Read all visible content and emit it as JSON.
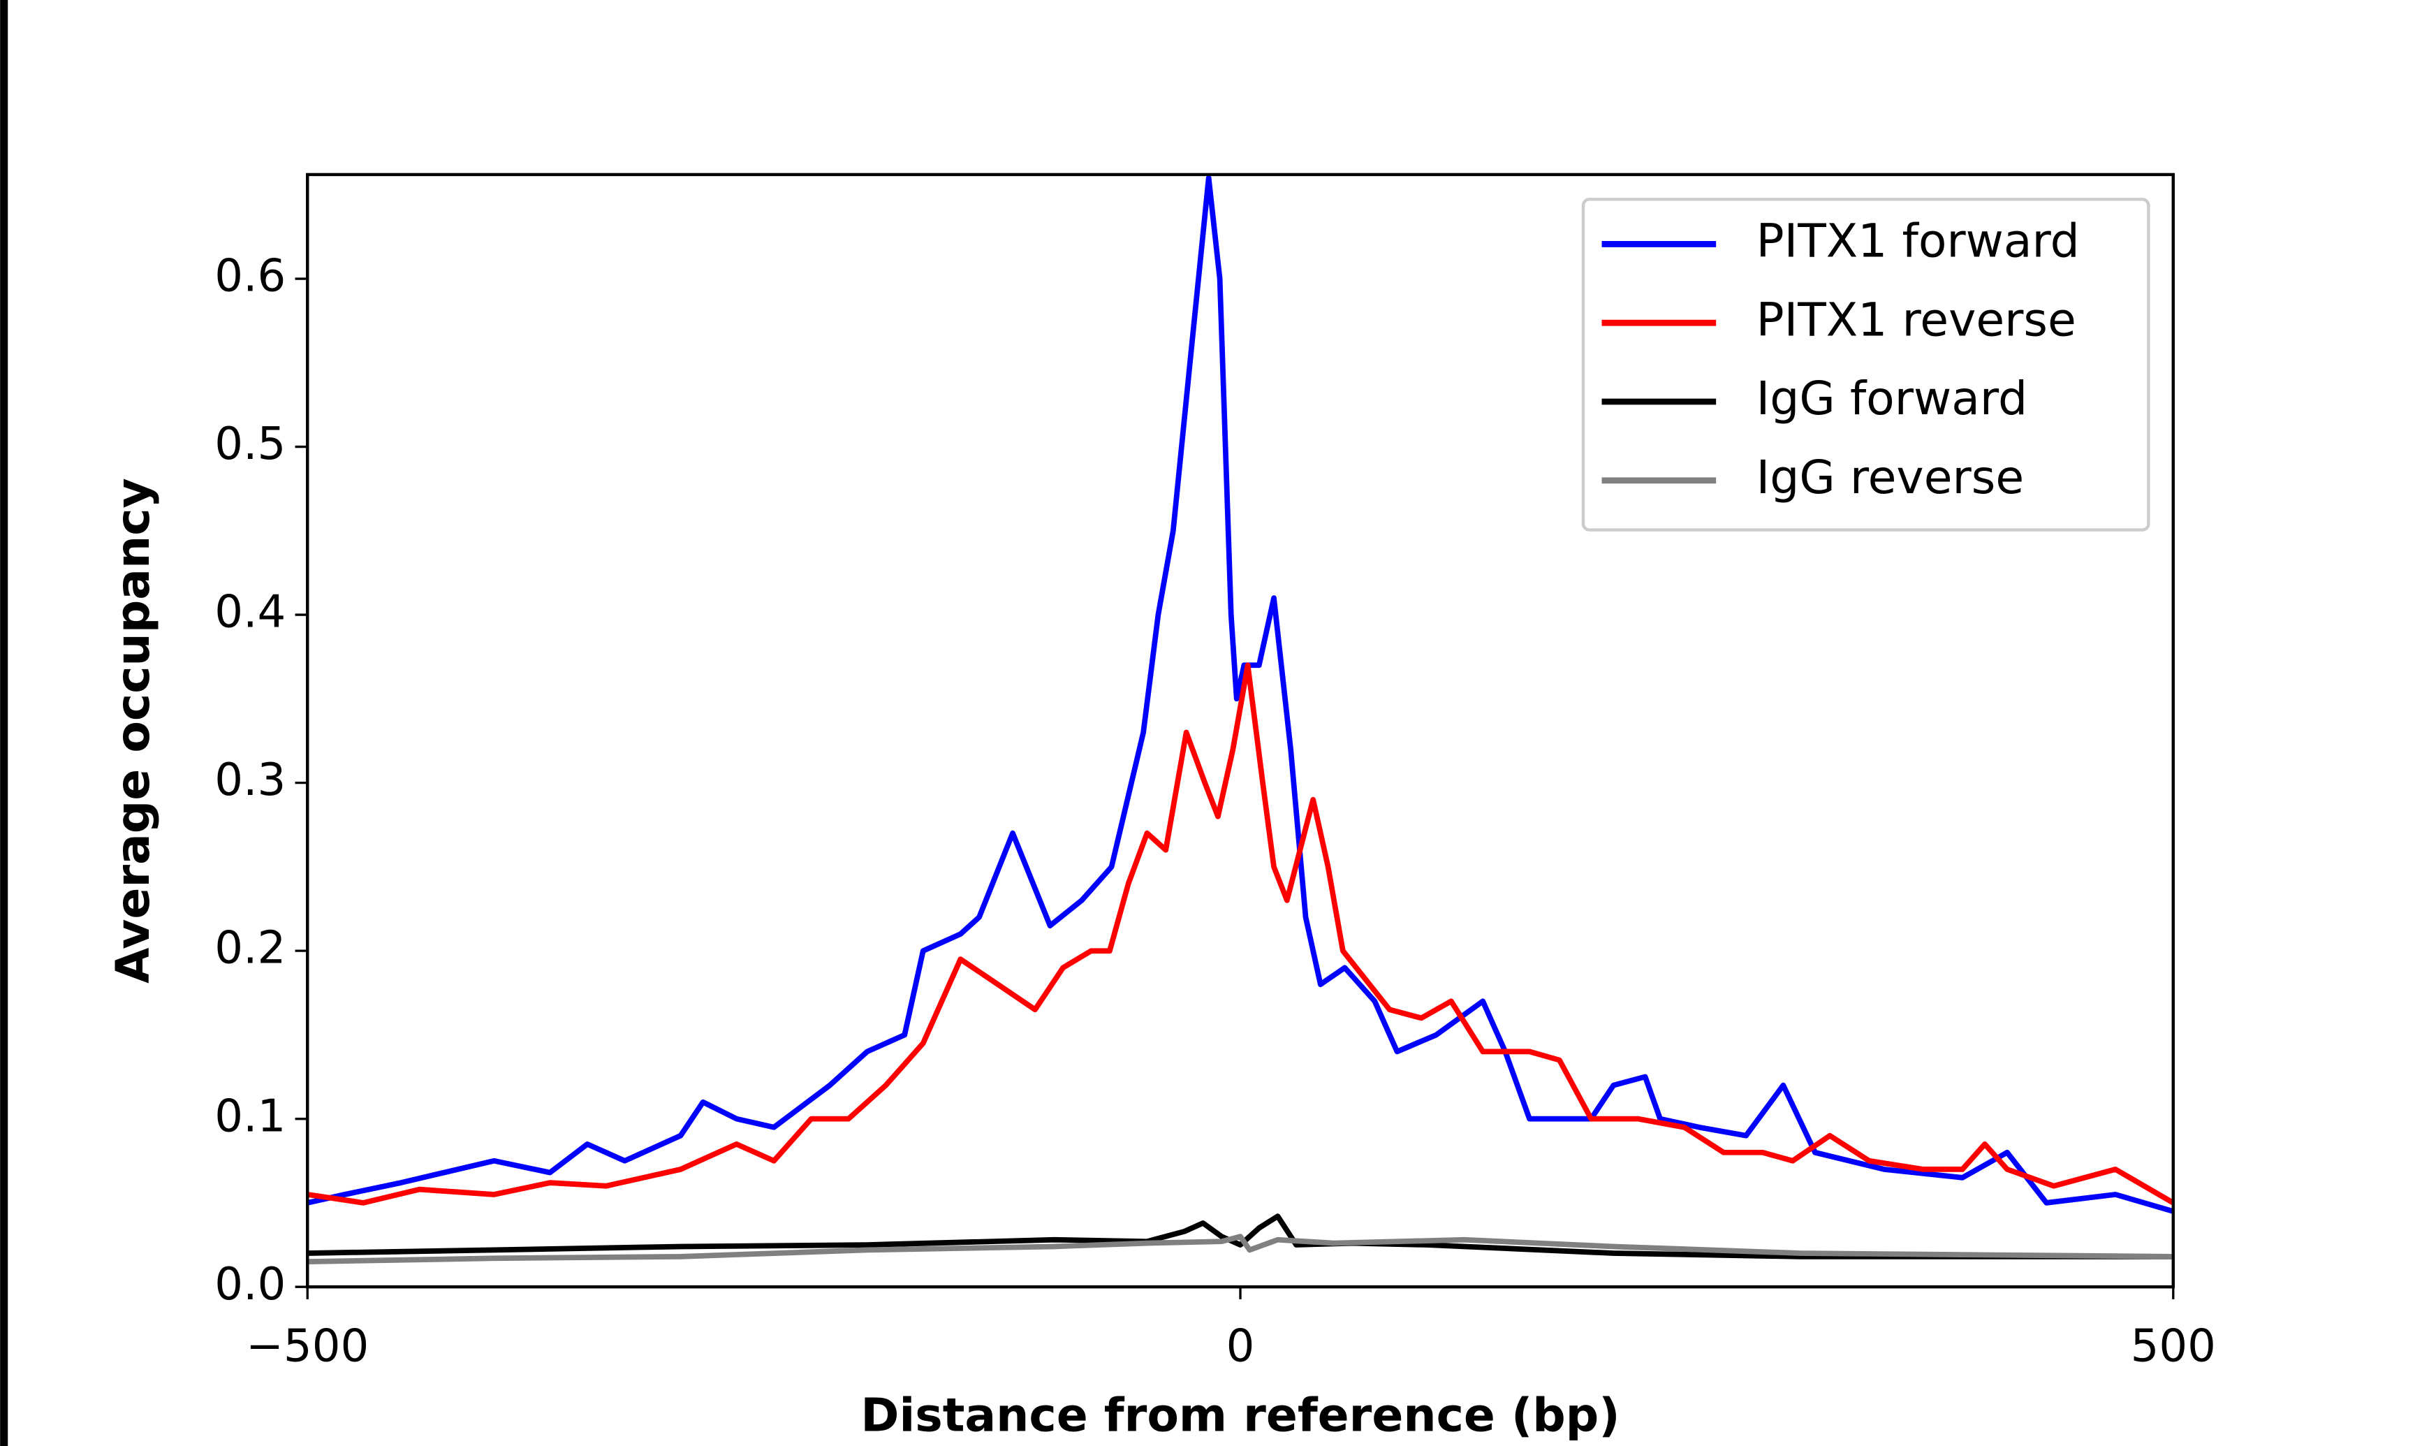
{
  "chart_data": {
    "type": "line",
    "xlabel": "Distance from reference (bp)",
    "ylabel": "Average occupancy",
    "xlim": [
      -500,
      500
    ],
    "ylim": [
      0,
      0.662
    ],
    "xticks": [
      {
        "value": -500,
        "label": "−500"
      },
      0,
      500
    ],
    "yticks": [
      {
        "value": 0,
        "label": "0.0"
      },
      0.1,
      0.2,
      0.3,
      0.4,
      0.5,
      0.6
    ],
    "legend": "upper right",
    "series": [
      {
        "name": "PITX1 forward",
        "color": "#0000ff",
        "x": [
          -500,
          -480,
          -450,
          -400,
          -370,
          -350,
          -330,
          -300,
          -288,
          -270,
          -250,
          -220,
          -200,
          -180,
          -170,
          -150,
          -140,
          -122,
          -102,
          -85,
          -69,
          -52,
          -44,
          -36,
          -27,
          -17,
          -11,
          -5,
          -2,
          2,
          10,
          18,
          27,
          35,
          43,
          56,
          72,
          84,
          105,
          130,
          142,
          155,
          188,
          200,
          217,
          225,
          246,
          271,
          291,
          308,
          345,
          387,
          411,
          432,
          469,
          500
        ],
        "values": [
          0.05,
          0.055,
          0.062,
          0.075,
          0.068,
          0.085,
          0.075,
          0.09,
          0.11,
          0.1,
          0.095,
          0.12,
          0.14,
          0.15,
          0.2,
          0.21,
          0.22,
          0.27,
          0.215,
          0.23,
          0.25,
          0.33,
          0.4,
          0.45,
          0.55,
          0.66,
          0.6,
          0.4,
          0.35,
          0.37,
          0.37,
          0.41,
          0.32,
          0.22,
          0.18,
          0.19,
          0.17,
          0.14,
          0.15,
          0.17,
          0.14,
          0.1,
          0.1,
          0.12,
          0.125,
          0.1,
          0.095,
          0.09,
          0.12,
          0.08,
          0.07,
          0.065,
          0.08,
          0.05,
          0.055,
          0.045
        ]
      },
      {
        "name": "PITX1 reverse",
        "color": "#ff0000",
        "x": [
          -500,
          -470,
          -440,
          -400,
          -370,
          -340,
          -300,
          -270,
          -250,
          -230,
          -210,
          -190,
          -170,
          -150,
          -130,
          -110,
          -95,
          -80,
          -70,
          -60,
          -50,
          -40,
          -29,
          -19,
          -12,
          -4,
          4,
          12,
          18,
          25,
          39,
          47,
          55,
          80,
          97,
          113,
          130,
          155,
          171,
          188,
          213,
          238,
          259,
          280,
          296,
          316,
          337,
          366,
          387,
          399,
          411,
          436,
          469,
          500
        ],
        "values": [
          0.055,
          0.05,
          0.058,
          0.055,
          0.062,
          0.06,
          0.07,
          0.085,
          0.075,
          0.1,
          0.1,
          0.12,
          0.145,
          0.195,
          0.18,
          0.165,
          0.19,
          0.2,
          0.2,
          0.24,
          0.27,
          0.26,
          0.33,
          0.3,
          0.28,
          0.32,
          0.37,
          0.3,
          0.25,
          0.23,
          0.29,
          0.25,
          0.2,
          0.165,
          0.16,
          0.17,
          0.14,
          0.14,
          0.135,
          0.1,
          0.1,
          0.095,
          0.08,
          0.08,
          0.075,
          0.09,
          0.075,
          0.07,
          0.07,
          0.085,
          0.07,
          0.06,
          0.07,
          0.05
        ]
      },
      {
        "name": "IgG forward",
        "color": "#000000",
        "x": [
          -500,
          -400,
          -300,
          -200,
          -100,
          -50,
          -30,
          -20,
          -10,
          0,
          10,
          20,
          30,
          60,
          100,
          200,
          300,
          400,
          500
        ],
        "values": [
          0.02,
          0.022,
          0.024,
          0.025,
          0.028,
          0.027,
          0.033,
          0.038,
          0.03,
          0.025,
          0.035,
          0.042,
          0.025,
          0.026,
          0.025,
          0.02,
          0.018,
          0.018,
          0.018
        ]
      },
      {
        "name": "IgG reverse",
        "color": "#808080",
        "x": [
          -500,
          -400,
          -300,
          -200,
          -100,
          -50,
          -10,
          0,
          5,
          20,
          50,
          120,
          200,
          300,
          400,
          500
        ],
        "values": [
          0.015,
          0.017,
          0.018,
          0.022,
          0.024,
          0.026,
          0.027,
          0.03,
          0.022,
          0.028,
          0.026,
          0.028,
          0.024,
          0.02,
          0.019,
          0.018
        ]
      }
    ]
  }
}
